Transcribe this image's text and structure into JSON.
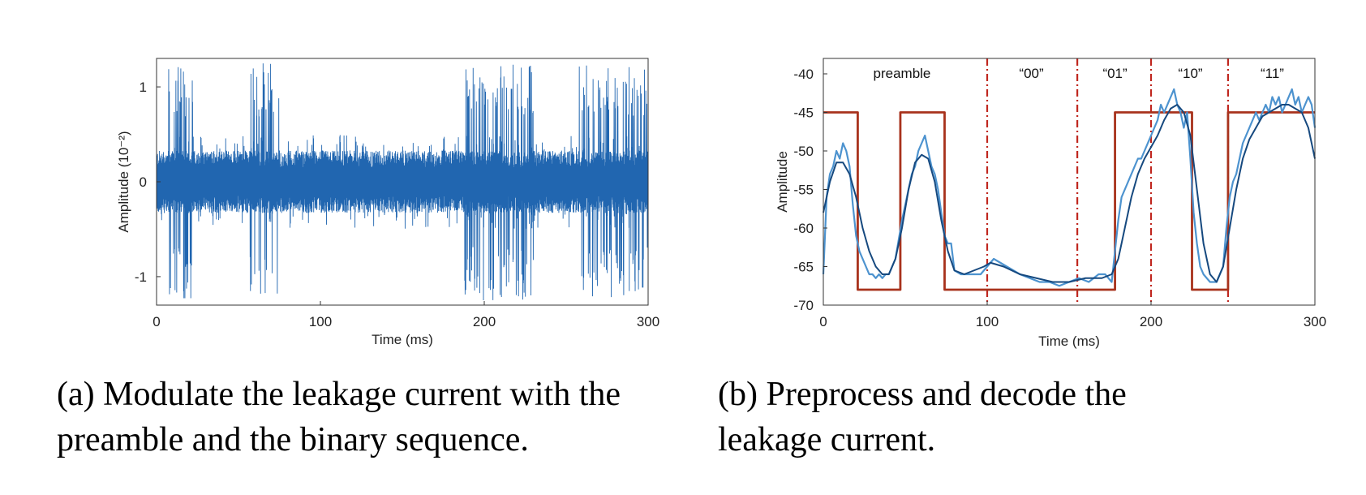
{
  "chart_data": [
    {
      "id": "a",
      "type": "line",
      "title": "",
      "xlabel": "Time (ms)",
      "ylabel": "Amplitude (10⁻²)",
      "xlim": [
        0,
        300
      ],
      "ylim": [
        -1.3,
        1.3
      ],
      "xticks": [
        0,
        100,
        200,
        300
      ],
      "xtick_labels": [
        "0",
        "100",
        "200",
        "300"
      ],
      "yticks": [
        -1,
        0,
        1
      ],
      "ytick_labels": [
        "-1",
        "0",
        "1"
      ],
      "grid": false,
      "series": [
        {
          "color": "#2166b0",
          "noise_band": 0.33,
          "burst_regions": [
            [
              7,
              23
            ],
            [
              57,
              75
            ],
            [
              188,
              230
            ],
            [
              258,
              300
            ]
          ],
          "burst_peak": 1.25
        }
      ]
    },
    {
      "id": "b",
      "type": "line",
      "title": "",
      "xlabel": "Time (ms)",
      "ylabel": "Amplitude",
      "xlim": [
        0,
        300
      ],
      "ylim": [
        -70,
        -38
      ],
      "xticks": [
        0,
        100,
        200,
        300
      ],
      "xtick_labels": [
        "0",
        "100",
        "200",
        "300"
      ],
      "yticks": [
        -70,
        -65,
        -60,
        -55,
        -50,
        -45,
        -40
      ],
      "ytick_labels": [
        "-70",
        "-65",
        "-60",
        "-55",
        "-50",
        "-45",
        "-40"
      ],
      "grid": false,
      "annotations": [
        {
          "text": "preamble",
          "x": 48
        },
        {
          "text": "“00”",
          "x": 127
        },
        {
          "text": "“01”",
          "x": 178
        },
        {
          "text": "“10”",
          "x": 224
        },
        {
          "text": "“11”",
          "x": 274
        }
      ],
      "dividers": [
        100,
        155,
        200,
        247
      ],
      "divider_color": "#c0271f",
      "series": [
        {
          "color": "#a8321c",
          "style": "step",
          "x": [
            0,
            21,
            21,
            47,
            47,
            74,
            74,
            178,
            178,
            225,
            225,
            247,
            247,
            300
          ],
          "y": [
            -45,
            -45,
            -68,
            -68,
            -45,
            -45,
            -68,
            -68,
            -45,
            -45,
            -68,
            -68,
            -45,
            -45
          ]
        },
        {
          "color": "#4d93cf",
          "style": "line",
          "x": [
            0,
            2,
            4,
            6,
            8,
            10,
            12,
            14,
            16,
            18,
            20,
            22,
            24,
            26,
            28,
            30,
            32,
            34,
            36,
            38,
            40,
            44,
            48,
            50,
            52,
            54,
            56,
            58,
            60,
            62,
            64,
            66,
            68,
            70,
            72,
            74,
            76,
            78,
            80,
            84,
            90,
            96,
            100,
            104,
            108,
            112,
            116,
            120,
            126,
            132,
            138,
            144,
            150,
            156,
            162,
            168,
            172,
            176,
            178,
            180,
            182,
            184,
            186,
            188,
            190,
            192,
            194,
            196,
            198,
            200,
            202,
            204,
            206,
            208,
            210,
            212,
            214,
            216,
            218,
            220,
            222,
            224,
            226,
            228,
            230,
            232,
            234,
            236,
            238,
            240,
            242,
            244,
            246,
            248,
            250,
            252,
            254,
            256,
            258,
            260,
            262,
            264,
            266,
            268,
            270,
            272,
            274,
            276,
            278,
            280,
            282,
            284,
            286,
            288,
            290,
            292,
            294,
            296,
            298,
            300
          ],
          "y": [
            -66,
            -56,
            -53,
            -52,
            -50,
            -51,
            -49,
            -50,
            -52,
            -57,
            -61,
            -63,
            -64,
            -65,
            -66,
            -66,
            -66.5,
            -66,
            -66.5,
            -66,
            -66,
            -64,
            -59,
            -57,
            -55,
            -53,
            -52,
            -50,
            -49,
            -48,
            -50,
            -52,
            -53,
            -55,
            -58,
            -61,
            -62,
            -62,
            -65.5,
            -66,
            -66,
            -66,
            -65,
            -64,
            -64.5,
            -65,
            -65.5,
            -66,
            -66.5,
            -67,
            -67,
            -67.5,
            -67,
            -66.5,
            -67,
            -66,
            -66,
            -67,
            -63,
            -59,
            -56,
            -55,
            -54,
            -53,
            -52,
            -51,
            -51,
            -50,
            -49,
            -48,
            -47,
            -46,
            -44,
            -45,
            -44,
            -43,
            -42,
            -44,
            -45,
            -47,
            -45,
            -51,
            -58,
            -62,
            -65,
            -66,
            -66.5,
            -67,
            -67,
            -67,
            -66,
            -65,
            -60,
            -56,
            -54,
            -53,
            -51,
            -49,
            -48,
            -47,
            -46,
            -45,
            -46,
            -45,
            -44,
            -45,
            -43,
            -44,
            -43,
            -45,
            -44,
            -43,
            -42,
            -44,
            -43,
            -45,
            -44,
            -43,
            -44,
            -47
          ]
        },
        {
          "color": "#16497f",
          "style": "line",
          "x": [
            0,
            4,
            8,
            12,
            16,
            20,
            24,
            28,
            32,
            36,
            40,
            44,
            48,
            52,
            56,
            60,
            64,
            68,
            72,
            76,
            80,
            86,
            92,
            98,
            102,
            110,
            120,
            130,
            140,
            150,
            160,
            170,
            176,
            180,
            184,
            188,
            192,
            196,
            200,
            204,
            208,
            212,
            216,
            220,
            224,
            228,
            232,
            236,
            240,
            244,
            248,
            252,
            256,
            260,
            264,
            268,
            272,
            276,
            280,
            284,
            288,
            292,
            296,
            300
          ],
          "y": [
            -58,
            -54,
            -51.5,
            -51.5,
            -53,
            -56,
            -60,
            -63,
            -65,
            -66,
            -66,
            -64,
            -60,
            -55,
            -51.5,
            -50.5,
            -51,
            -54,
            -59,
            -63,
            -65.5,
            -66,
            -65.5,
            -65,
            -64.5,
            -65,
            -66,
            -66.5,
            -67,
            -67,
            -66.5,
            -66.5,
            -66,
            -64,
            -60,
            -56,
            -53,
            -51,
            -49.5,
            -48,
            -46,
            -44.5,
            -44,
            -45,
            -48,
            -55,
            -62,
            -66,
            -67,
            -65,
            -60,
            -55,
            -51,
            -48.5,
            -47,
            -45.5,
            -45,
            -44.5,
            -44,
            -44,
            -44.5,
            -45,
            -47,
            -51
          ]
        }
      ]
    }
  ],
  "captions": {
    "a_line1": "(a) Modulate the leakage current with the",
    "a_line2": "preamble and the binary sequence.",
    "b_line1": "(b) Preprocess and decode the",
    "b_line2": "leakage current."
  }
}
